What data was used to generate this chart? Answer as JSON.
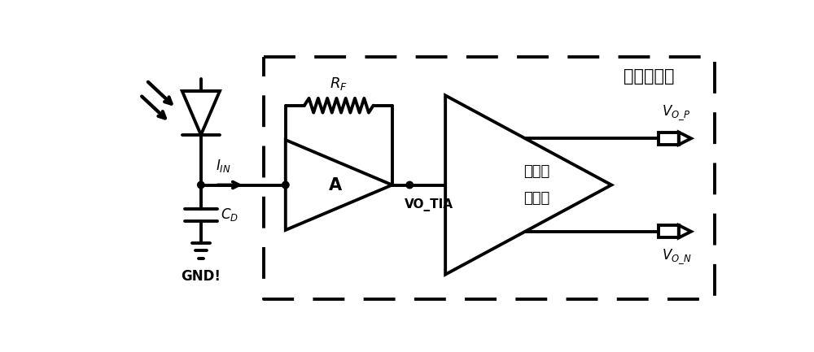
{
  "background_color": "#ffffff",
  "line_color": "#000000",
  "line_width": 2.8,
  "label_preamp": "前置放大器",
  "label_phase_split_line1": "相位分",
  "label_phase_split_line2": "裂电路",
  "label_RF": "R_F",
  "label_IIN": "I_{IN}",
  "label_VO_TIA": "VO_TIA",
  "label_VO_P": "V_{O\\_P}",
  "label_VO_N": "V_{O\\_N}",
  "label_CD": "C_D",
  "label_GND": "GND!",
  "label_A": "A"
}
